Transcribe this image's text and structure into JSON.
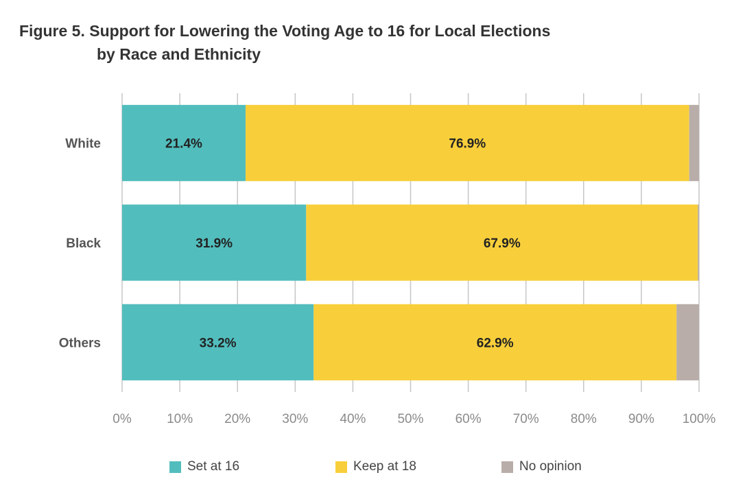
{
  "title": {
    "line1": "Figure 5. Support for Lowering the Voting Age to 16 for Local Elections",
    "line2": "by Race and Ethnicity"
  },
  "chart_data": {
    "type": "bar",
    "orientation": "horizontal",
    "stacked": true,
    "categories": [
      "White",
      "Black",
      "Others"
    ],
    "series": [
      {
        "name": "Set at 16",
        "color": "#52BDBD",
        "values": [
          21.4,
          31.9,
          33.2
        ],
        "labels": [
          "21.4%",
          "31.9%",
          "33.2%"
        ]
      },
      {
        "name": "Keep at 18",
        "color": "#F8CF3A",
        "values": [
          76.9,
          67.9,
          62.9
        ],
        "labels": [
          "76.9%",
          "67.9%",
          "62.9%"
        ]
      },
      {
        "name": "No opinion",
        "color": "#B8ADA9",
        "values": [
          1.7,
          0.2,
          3.9
        ]
      }
    ],
    "xlim": [
      0,
      100
    ],
    "xticks": [
      "0%",
      "10%",
      "20%",
      "30%",
      "40%",
      "50%",
      "60%",
      "70%",
      "80%",
      "90%",
      "100%"
    ],
    "grid": true,
    "legend_position": "bottom"
  },
  "legend": {
    "items": [
      {
        "label": "Set at 16",
        "color": "#52BDBD"
      },
      {
        "label": "Keep at 18",
        "color": "#F8CF3A"
      },
      {
        "label": "No opinion",
        "color": "#B8ADA9"
      }
    ]
  }
}
